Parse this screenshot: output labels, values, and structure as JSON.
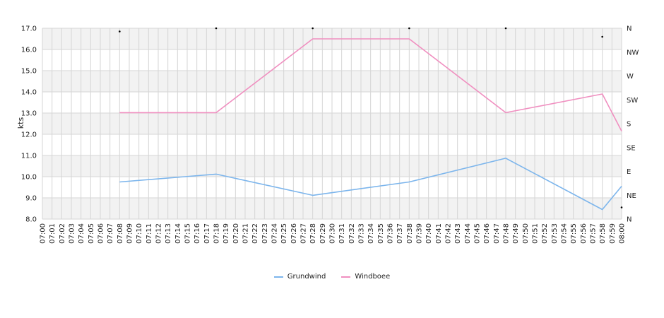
{
  "chart_data": {
    "type": "line",
    "ylabel": "kts",
    "ylim": [
      8.0,
      17.0
    ],
    "y_ticks": [
      "8.0",
      "9.0",
      "10.0",
      "11.0",
      "12.0",
      "13.0",
      "14.0",
      "15.0",
      "16.0",
      "17.0"
    ],
    "y2_ticks": [
      "N",
      "NE",
      "E",
      "SE",
      "S",
      "SW",
      "W",
      "NW",
      "N"
    ],
    "x_ticks": [
      "07:00",
      "07:01",
      "07:02",
      "07:03",
      "07:04",
      "07:05",
      "07:06",
      "07:07",
      "07:08",
      "07:09",
      "07:10",
      "07:11",
      "07:12",
      "07:13",
      "07:14",
      "07:15",
      "07:16",
      "07:17",
      "07:18",
      "07:19",
      "07:20",
      "07:21",
      "07:22",
      "07:23",
      "07:24",
      "07:25",
      "07:26",
      "07:27",
      "07:28",
      "07:29",
      "07:30",
      "07:31",
      "07:32",
      "07:33",
      "07:34",
      "07:35",
      "07:36",
      "07:37",
      "07:38",
      "07:39",
      "07:40",
      "07:41",
      "07:42",
      "07:43",
      "07:44",
      "07:45",
      "07:46",
      "07:47",
      "07:48",
      "07:49",
      "07:50",
      "07:51",
      "07:52",
      "07:53",
      "07:54",
      "07:55",
      "07:56",
      "07:57",
      "07:58",
      "07:59",
      "08:00"
    ],
    "grid": true,
    "legend": "bottom",
    "series": [
      {
        "name": "Grundwind",
        "color": "#7cb5ec",
        "x": [
          "07:08",
          "07:18",
          "07:28",
          "07:38",
          "07:48",
          "07:58",
          "08:00"
        ],
        "values": [
          9.75,
          10.12,
          9.12,
          9.75,
          10.87,
          8.45,
          9.55
        ]
      },
      {
        "name": "Windboee",
        "color": "#f08fc0",
        "x": [
          "07:08",
          "07:18",
          "07:28",
          "07:38",
          "07:48",
          "07:58",
          "08:00"
        ],
        "values": [
          13.02,
          13.02,
          16.5,
          16.5,
          13.02,
          13.9,
          12.15
        ]
      }
    ],
    "direction_markers": {
      "x": [
        "07:08",
        "07:18",
        "07:28",
        "07:38",
        "07:48",
        "07:58",
        "08:00"
      ],
      "values": [
        16.85,
        17.0,
        17.0,
        17.0,
        17.0,
        16.6,
        8.55
      ]
    }
  }
}
